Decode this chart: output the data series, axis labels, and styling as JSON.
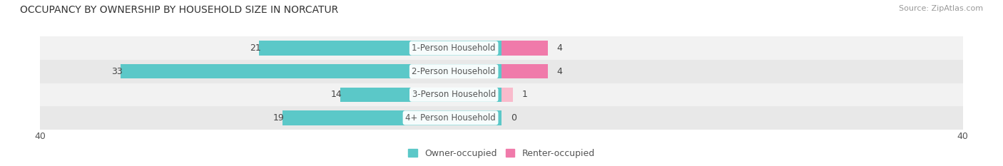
{
  "title": "OCCUPANCY BY OWNERSHIP BY HOUSEHOLD SIZE IN NORCATUR",
  "source": "Source: ZipAtlas.com",
  "categories": [
    "1-Person Household",
    "2-Person Household",
    "3-Person Household",
    "4+ Person Household"
  ],
  "owner_values": [
    21,
    33,
    14,
    19
  ],
  "renter_values": [
    4,
    4,
    1,
    0
  ],
  "owner_color": "#5BC8C8",
  "renter_color": "#F07AAA",
  "renter_color_light": "#F9BBCC",
  "xlim": 40,
  "title_fontsize": 10,
  "label_fontsize": 8.5,
  "value_fontsize": 9,
  "source_fontsize": 8,
  "legend_fontsize": 9,
  "axis_tick_fontsize": 9,
  "row_colors": [
    "#F2F2F2",
    "#E8E8E8",
    "#F2F2F2",
    "#E8E8E8"
  ]
}
